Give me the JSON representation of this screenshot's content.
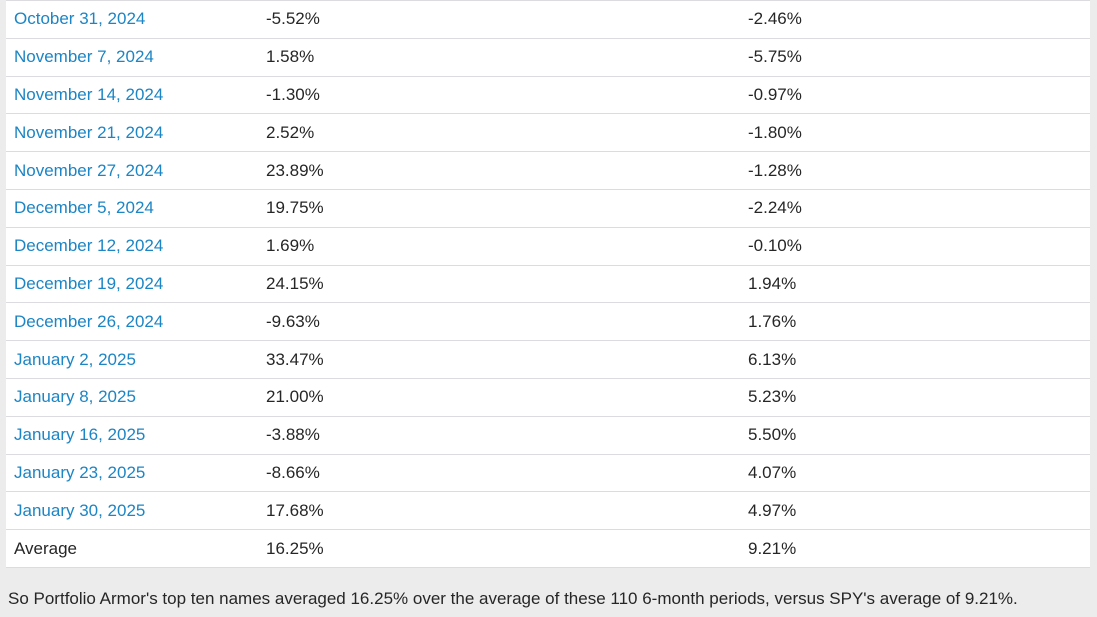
{
  "page": {
    "colors": {
      "page_background": "#ececec",
      "table_background": "#ffffff",
      "border_color": "#dcdce0",
      "link_color": "#1b85c5",
      "text_color": "#262626"
    }
  },
  "table": {
    "columns": [
      "date",
      "portfolio_armor_return",
      "spy_return"
    ],
    "rows": [
      {
        "date": "October 31, 2024",
        "portfolio_armor_return": "-5.52%",
        "spy_return": "-2.46%",
        "is_link": true
      },
      {
        "date": "November 7, 2024",
        "portfolio_armor_return": "1.58%",
        "spy_return": "-5.75%",
        "is_link": true
      },
      {
        "date": "November 14, 2024",
        "portfolio_armor_return": "-1.30%",
        "spy_return": "-0.97%",
        "is_link": true
      },
      {
        "date": "November 21, 2024",
        "portfolio_armor_return": "2.52%",
        "spy_return": "-1.80%",
        "is_link": true
      },
      {
        "date": "November 27, 2024",
        "portfolio_armor_return": "23.89%",
        "spy_return": "-1.28%",
        "is_link": true
      },
      {
        "date": "December 5, 2024",
        "portfolio_armor_return": "19.75%",
        "spy_return": "-2.24%",
        "is_link": true
      },
      {
        "date": "December 12, 2024",
        "portfolio_armor_return": "1.69%",
        "spy_return": "-0.10%",
        "is_link": true
      },
      {
        "date": "December 19, 2024",
        "portfolio_armor_return": "24.15%",
        "spy_return": "1.94%",
        "is_link": true
      },
      {
        "date": "December 26, 2024",
        "portfolio_armor_return": "-9.63%",
        "spy_return": "1.76%",
        "is_link": true
      },
      {
        "date": "January 2, 2025",
        "portfolio_armor_return": "33.47%",
        "spy_return": "6.13%",
        "is_link": true
      },
      {
        "date": "January 8, 2025",
        "portfolio_armor_return": "21.00%",
        "spy_return": "5.23%",
        "is_link": true
      },
      {
        "date": "January 16, 2025",
        "portfolio_armor_return": "-3.88%",
        "spy_return": "5.50%",
        "is_link": true
      },
      {
        "date": "January 23, 2025",
        "portfolio_armor_return": "-8.66%",
        "spy_return": "4.07%",
        "is_link": true
      },
      {
        "date": "January 30, 2025",
        "portfolio_armor_return": "17.68%",
        "spy_return": "4.97%",
        "is_link": true
      },
      {
        "date": "Average",
        "portfolio_armor_return": "16.25%",
        "spy_return": "9.21%",
        "is_link": false
      }
    ]
  },
  "footer": {
    "text": "So Portfolio Armor's top ten names averaged 16.25% over the average of these 110 6-month periods, versus SPY's average of 9.21%."
  }
}
